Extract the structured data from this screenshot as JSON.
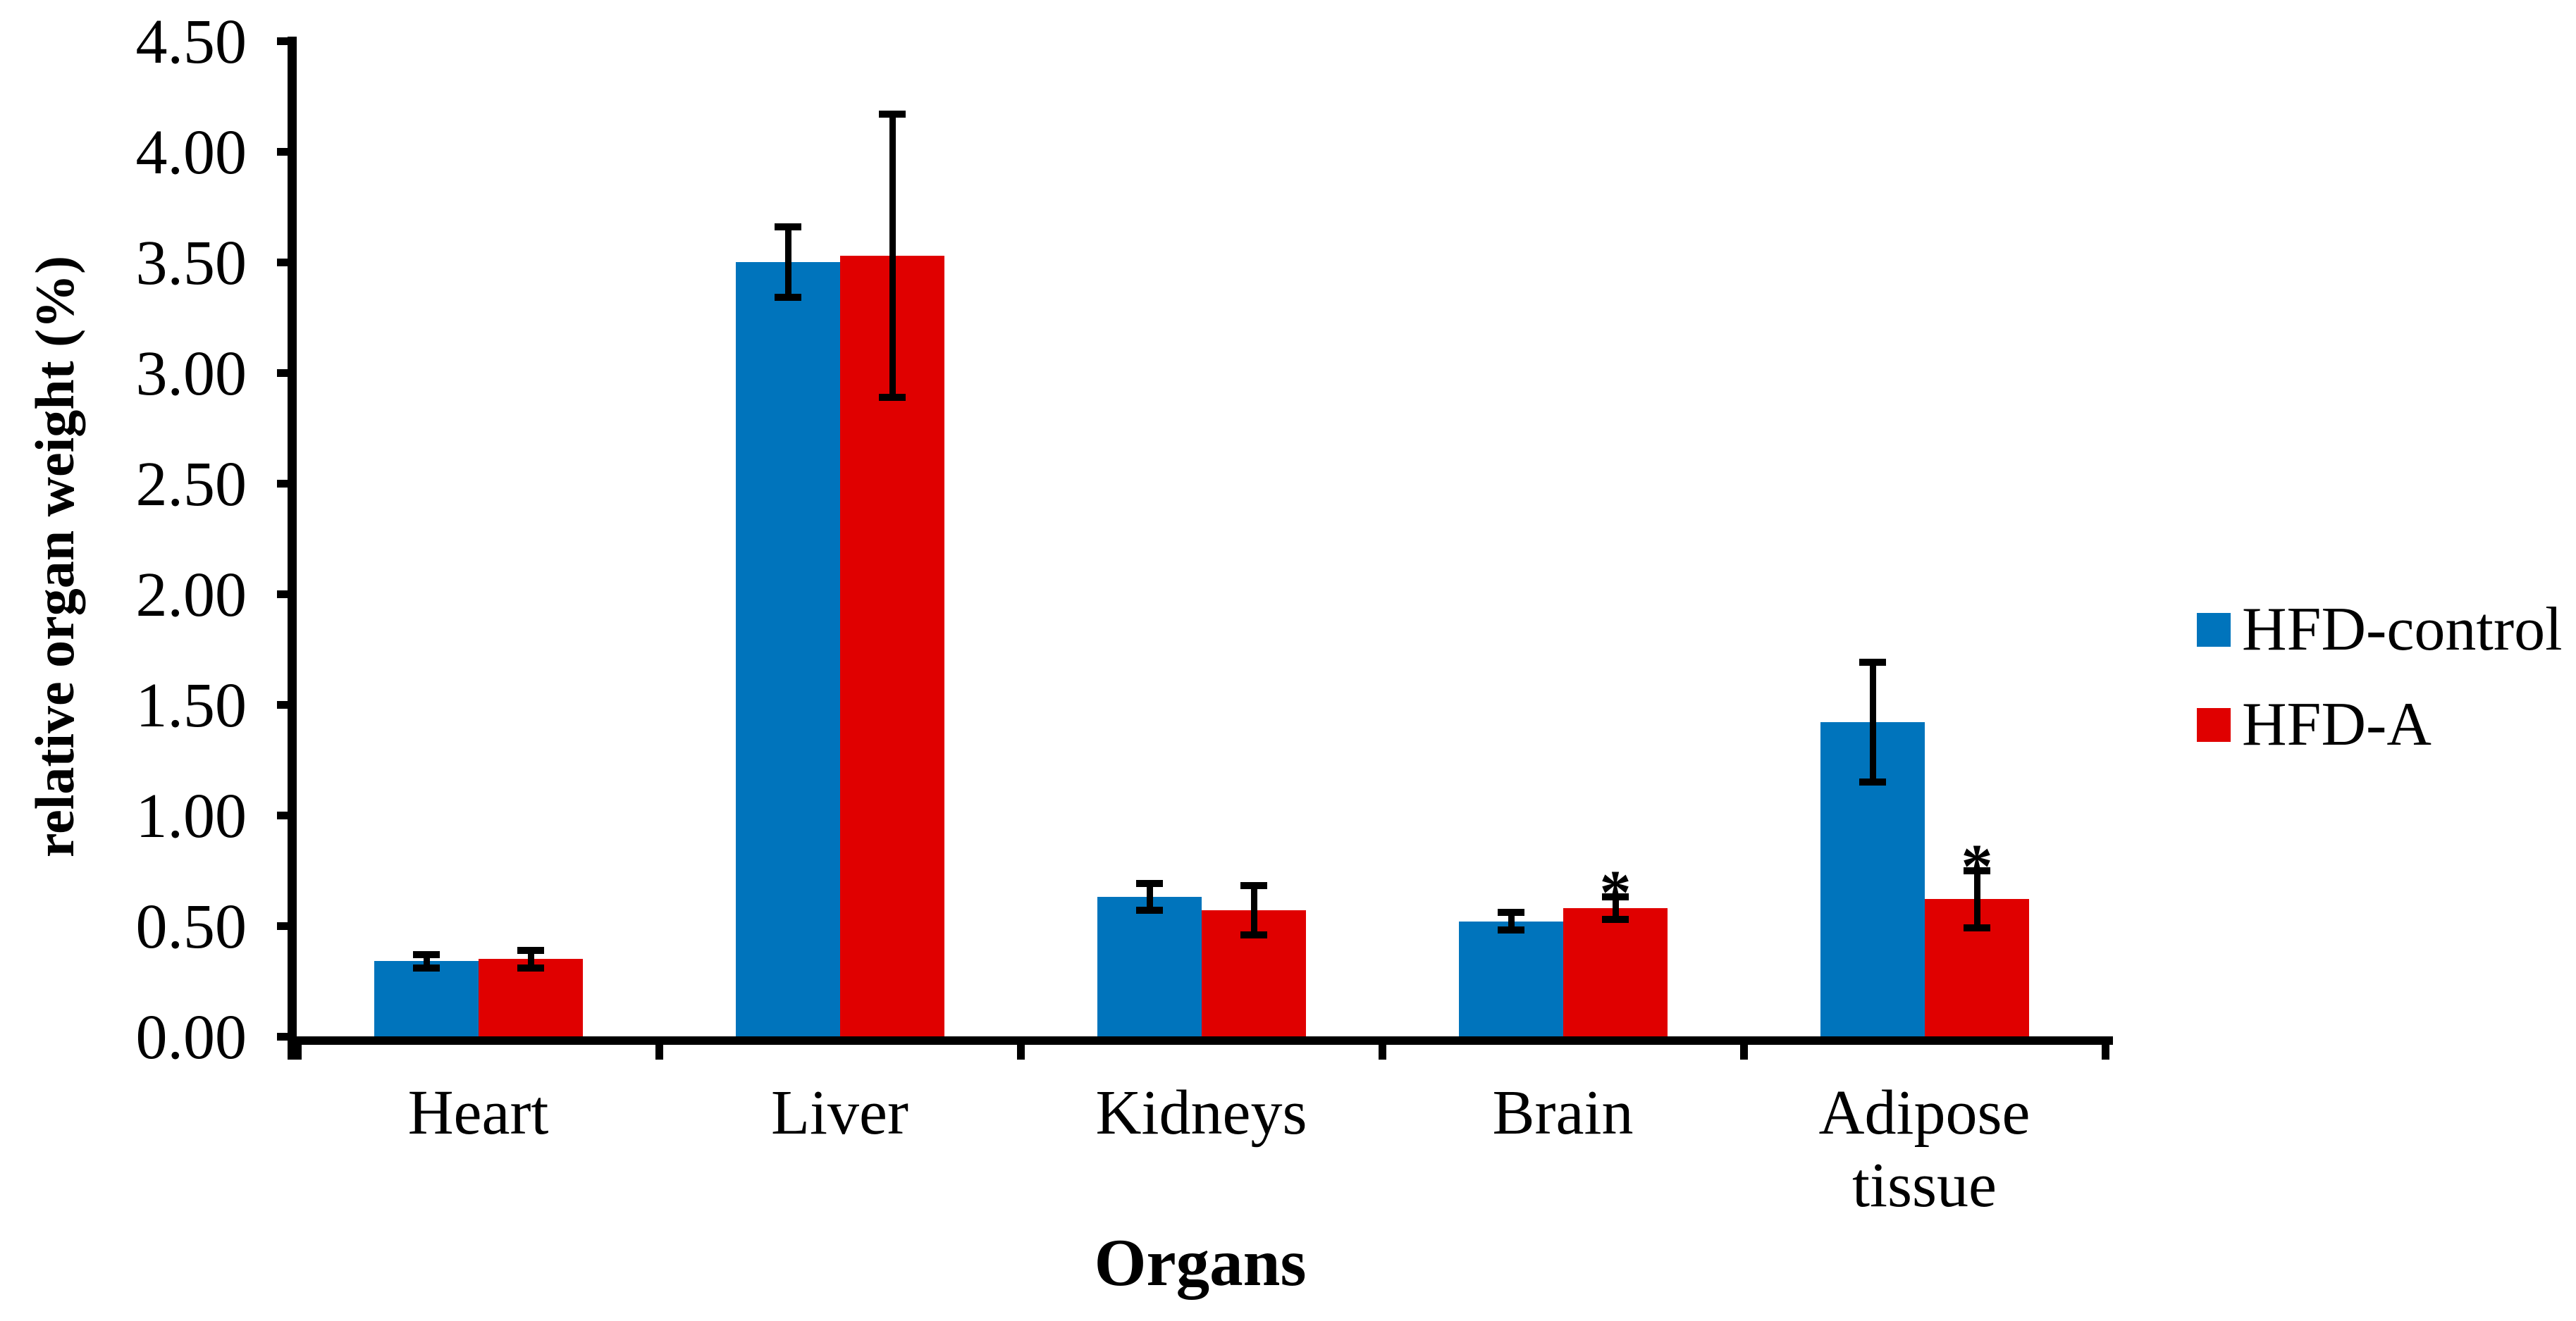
{
  "chart_data": {
    "type": "bar",
    "title": "",
    "xlabel": "Organs",
    "ylabel": "relative organ weight (%)",
    "ylim": [
      0,
      4.5
    ],
    "ytick_step": 0.5,
    "ytick_labels": [
      "0.00",
      "0.50",
      "1.00",
      "1.50",
      "2.00",
      "2.50",
      "3.00",
      "3.50",
      "4.00",
      "4.50"
    ],
    "categories": [
      "Heart",
      "Liver",
      "Kidneys",
      "Brain",
      "Adipose tissue"
    ],
    "series": [
      {
        "name": "HFD-control",
        "color": "#0074BC",
        "values": [
          0.34,
          3.5,
          0.63,
          0.52,
          1.42
        ],
        "errors": [
          0.03,
          0.16,
          0.06,
          0.04,
          0.27
        ],
        "significance": [
          "",
          "",
          "",
          "",
          ""
        ]
      },
      {
        "name": "HFD-A",
        "color": "#E00000",
        "values": [
          0.35,
          3.53,
          0.57,
          0.58,
          0.62
        ],
        "errors": [
          0.04,
          0.64,
          0.11,
          0.05,
          0.13
        ],
        "significance": [
          "",
          "",
          "",
          "*",
          "*"
        ]
      }
    ],
    "significance_symbol": "*",
    "legend_position": "right",
    "grid": false,
    "error_bars": true,
    "axis_color": "#000000",
    "background_color": "#FFFFFF"
  }
}
